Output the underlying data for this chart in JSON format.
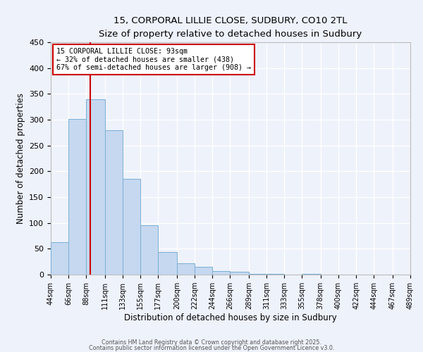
{
  "title": "15, CORPORAL LILLIE CLOSE, SUDBURY, CO10 2TL",
  "subtitle": "Size of property relative to detached houses in Sudbury",
  "xlabel": "Distribution of detached houses by size in Sudbury",
  "ylabel": "Number of detached properties",
  "bin_edges": [
    44,
    66,
    88,
    111,
    133,
    155,
    177,
    200,
    222,
    244,
    266,
    289,
    311,
    333,
    355,
    378,
    400,
    422,
    444,
    467,
    489
  ],
  "bar_heights": [
    63,
    301,
    340,
    280,
    185,
    95,
    44,
    22,
    15,
    7,
    5,
    2,
    1,
    0,
    1,
    0,
    0,
    0,
    0,
    0
  ],
  "bar_color": "#c5d8f0",
  "bar_edgecolor": "#7bafd4",
  "property_size": 93,
  "vline_color": "#cc0000",
  "ylim": [
    0,
    450
  ],
  "yticks": [
    0,
    50,
    100,
    150,
    200,
    250,
    300,
    350,
    400,
    450
  ],
  "annotation_title": "15 CORPORAL LILLIE CLOSE: 93sqm",
  "annotation_line1": "← 32% of detached houses are smaller (438)",
  "annotation_line2": "67% of semi-detached houses are larger (908) →",
  "annotation_box_color": "#cc0000",
  "footer_line1": "Contains HM Land Registry data © Crown copyright and database right 2025.",
  "footer_line2": "Contains public sector information licensed under the Open Government Licence v3.0.",
  "background_color": "#eef2fb",
  "grid_color": "#ffffff",
  "tick_labels": [
    "44sqm",
    "66sqm",
    "88sqm",
    "111sqm",
    "133sqm",
    "155sqm",
    "177sqm",
    "200sqm",
    "222sqm",
    "244sqm",
    "266sqm",
    "289sqm",
    "311sqm",
    "333sqm",
    "355sqm",
    "378sqm",
    "400sqm",
    "422sqm",
    "444sqm",
    "467sqm",
    "489sqm"
  ]
}
